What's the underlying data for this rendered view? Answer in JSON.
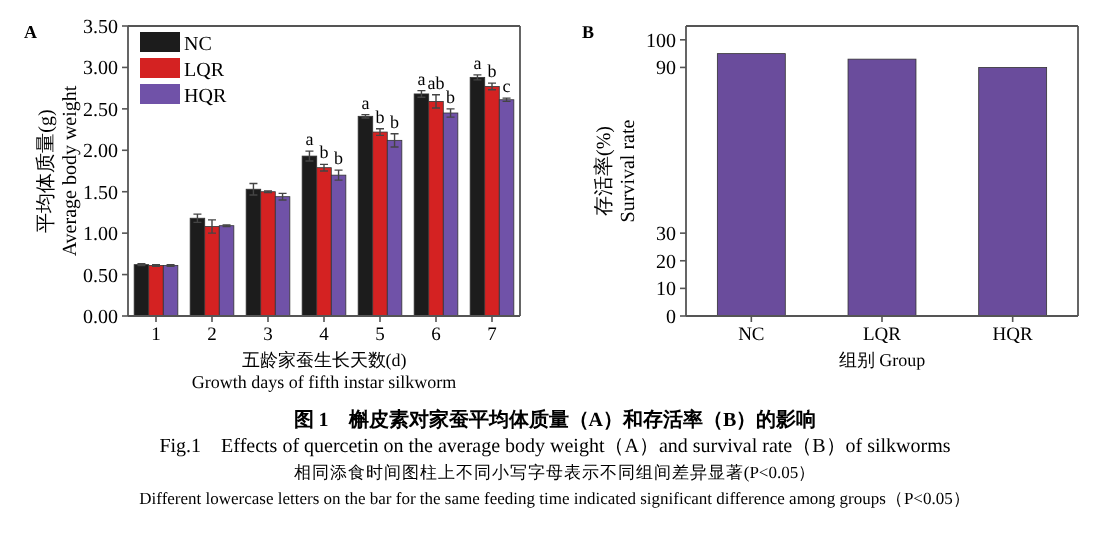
{
  "chart_data": [
    {
      "type": "bar",
      "title": "A",
      "categories": [
        "1",
        "2",
        "3",
        "4",
        "5",
        "6",
        "7"
      ],
      "xlabel": "五龄家蚕生长天数(d)\nGrowth days of fifth instar silkworm",
      "ylabel": "平均体质量(g)\nAverage body weight",
      "ylim": [
        0,
        3.5
      ],
      "yticks": [
        {
          "value": 0,
          "label": "0.00"
        },
        {
          "value": 0.5,
          "label": "0.50"
        },
        {
          "value": 1,
          "label": "1.00"
        },
        {
          "value": 1.5,
          "label": "1.50"
        },
        {
          "value": 2,
          "label": "2.00"
        },
        {
          "value": 2.5,
          "label": "2.50"
        },
        {
          "value": 3,
          "label": "3.00"
        },
        {
          "value": 3.5,
          "label": "3.50"
        }
      ],
      "legend": "top left",
      "series": [
        {
          "name": "NC",
          "color": "#1c1c1c",
          "values": [
            0.62,
            1.18,
            1.53,
            1.93,
            2.41,
            2.68,
            2.88
          ],
          "errors": [
            0.01,
            0.05,
            0.07,
            0.06,
            0.02,
            0.04,
            0.03
          ]
        },
        {
          "name": "LQR",
          "color": "#d42222",
          "values": [
            0.61,
            1.08,
            1.5,
            1.79,
            2.22,
            2.59,
            2.77
          ],
          "errors": [
            0.01,
            0.08,
            0.01,
            0.04,
            0.04,
            0.08,
            0.04
          ]
        },
        {
          "name": "HQR",
          "color": "#7052a8",
          "values": [
            0.61,
            1.09,
            1.44,
            1.7,
            2.12,
            2.45,
            2.61
          ],
          "errors": [
            0.01,
            0.01,
            0.04,
            0.06,
            0.08,
            0.05,
            0.02
          ]
        }
      ],
      "annotations": [
        {
          "text": "a",
          "x": "4",
          "y": 1.99
        },
        {
          "text": "b",
          "x": "4",
          "y": 1.83
        },
        {
          "text": "b",
          "x": "4",
          "y": 1.76
        },
        {
          "text": "a",
          "x": "5",
          "y": 2.43
        },
        {
          "text": "b",
          "x": "5",
          "y": 2.26
        },
        {
          "text": "b",
          "x": "5",
          "y": 2.2
        },
        {
          "text": "a",
          "x": "6",
          "y": 2.72
        },
        {
          "text": "ab",
          "x": "6",
          "y": 2.67
        },
        {
          "text": "b",
          "x": "6",
          "y": 2.5
        },
        {
          "text": "a",
          "x": "7",
          "y": 2.91
        },
        {
          "text": "b",
          "x": "7",
          "y": 2.81
        },
        {
          "text": "c",
          "x": "7",
          "y": 2.63
        }
      ]
    },
    {
      "type": "bar",
      "title": "B",
      "categories": [
        "NC",
        "LQR",
        "HQR"
      ],
      "xlabel": "组别 Group",
      "ylabel": "存活率(%)\nSurvival rate",
      "ylim": [
        0,
        105
      ],
      "yticks": [
        0,
        10,
        20,
        30,
        90,
        100
      ],
      "series": [
        {
          "color": "#6a4c9c",
          "values": [
            95,
            93,
            90
          ]
        }
      ]
    },
    {
      "type": "other",
      "title": "图 1　槲皮素对家蚕平均体质量（A）和存活率（B）的影响",
      "annotations": [
        "Fig.1　Effects of quercetin on the average body weight（A）and survival rate（B）of silkworms",
        "相同添食时间图柱上不同小写字母表示不同组间差异显著(P<0.05）",
        "Different lowercase letters on the bar for the same feeding time indicated significant difference among groups（P<0.05）"
      ]
    }
  ]
}
